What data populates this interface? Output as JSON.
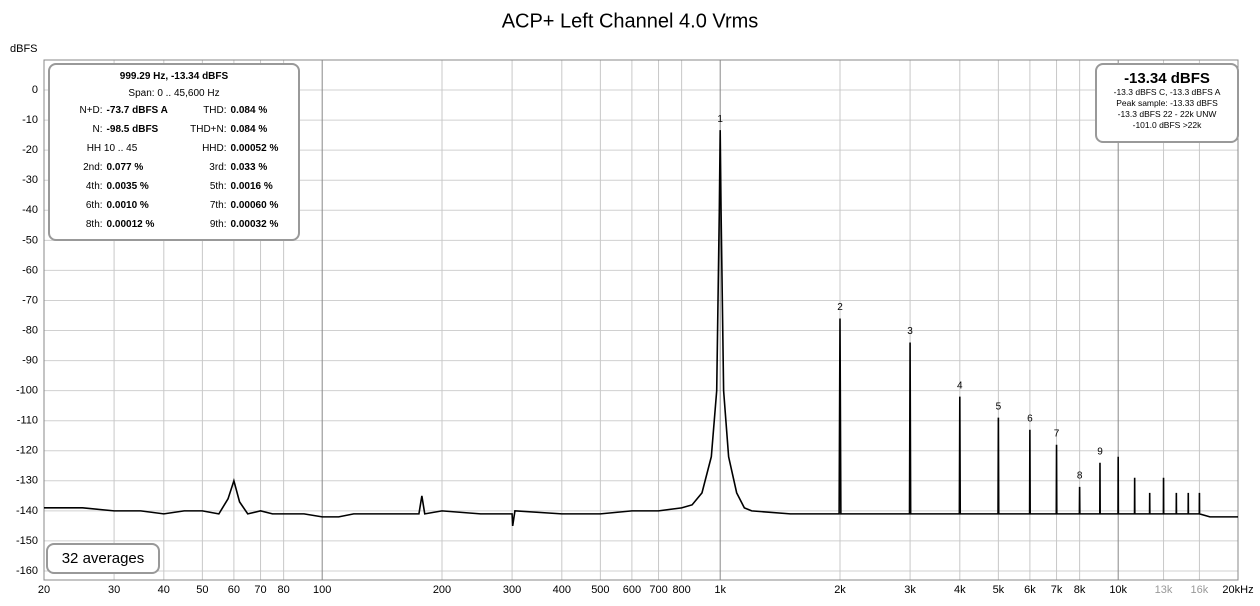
{
  "chart_data": {
    "type": "line",
    "title": "ACP+ Left Channel 4.0 Vrms",
    "y_label": "dBFS",
    "x_scale": "log",
    "grid": true,
    "xlim": [
      20,
      20000
    ],
    "ylim": [
      -163,
      10
    ],
    "yticks": [
      0,
      -10,
      -20,
      -30,
      -40,
      -50,
      -60,
      -70,
      -80,
      -90,
      -100,
      -110,
      -120,
      -130,
      -140,
      -150,
      -160
    ],
    "xticks": [
      20,
      30,
      40,
      50,
      60,
      70,
      80,
      100,
      200,
      300,
      400,
      500,
      600,
      700,
      800,
      {
        "value": 1000,
        "label": "1k"
      },
      {
        "value": 2000,
        "label": "2k"
      },
      {
        "value": 3000,
        "label": "3k"
      },
      {
        "value": 4000,
        "label": "4k"
      },
      {
        "value": 5000,
        "label": "5k"
      },
      {
        "value": 6000,
        "label": "6k"
      },
      {
        "value": 7000,
        "label": "7k"
      },
      {
        "value": 8000,
        "label": "8k"
      },
      {
        "value": 10000,
        "label": "10k"
      },
      {
        "value": 13000,
        "label": "13k",
        "color": "#999999"
      },
      {
        "value": 16000,
        "label": "16k",
        "color": "#999999"
      },
      {
        "value": 20000,
        "label": "20kHz"
      }
    ],
    "x": [
      20,
      25,
      30,
      35,
      40,
      45,
      50,
      55,
      58,
      60,
      62,
      65,
      70,
      75,
      80,
      90,
      100,
      110,
      120,
      140,
      160,
      175,
      178,
      181,
      200,
      250,
      300,
      301,
      305,
      400,
      500,
      600,
      700,
      800,
      850,
      900,
      950,
      980,
      995,
      1000,
      1005,
      1020,
      1050,
      1100,
      1150,
      1200,
      1500,
      1990,
      2000,
      2010,
      2500,
      2990,
      3000,
      3010,
      3500,
      3990,
      4000,
      4010,
      4500,
      4990,
      5000,
      5010,
      5500,
      5990,
      6000,
      6010,
      6500,
      6990,
      7000,
      7010,
      7500,
      7990,
      8000,
      8010,
      8500,
      8990,
      9000,
      9010,
      9500,
      9990,
      10000,
      10010,
      10990,
      11000,
      11010,
      11990,
      12000,
      12010,
      12990,
      13000,
      13010,
      13990,
      14000,
      14010,
      14990,
      15000,
      15010,
      15990,
      16000,
      16010,
      17000,
      20000
    ],
    "series": [
      {
        "name": "Left",
        "color": "#000000",
        "values": [
          -139,
          -139,
          -140,
          -140,
          -141,
          -140,
          -140,
          -141,
          -136,
          -130,
          -137,
          -141,
          -140,
          -141,
          -141,
          -141,
          -142,
          -142,
          -141,
          -141,
          -141,
          -141,
          -135,
          -141,
          -140,
          -141,
          -141,
          -145,
          -140,
          -141,
          -141,
          -140,
          -140,
          -139,
          -138,
          -134,
          -122,
          -100,
          -40,
          -13.34,
          -40,
          -100,
          -122,
          -134,
          -139,
          -140,
          -141,
          -141,
          -76,
          -141,
          -141,
          -141,
          -84,
          -141,
          -141,
          -141,
          -102,
          -141,
          -141,
          -141,
          -109,
          -141,
          -141,
          -141,
          -113,
          -141,
          -141,
          -141,
          -118,
          -141,
          -141,
          -141,
          -132,
          -141,
          -141,
          -141,
          -124,
          -141,
          -141,
          -141,
          -122,
          -141,
          -141,
          -129,
          -141,
          -141,
          -134,
          -141,
          -141,
          -129,
          -141,
          -141,
          -134,
          -141,
          -141,
          -134,
          -141,
          -141,
          -134,
          -141,
          -142,
          -142
        ]
      }
    ],
    "peak_labels": [
      {
        "text": "1",
        "x": 1000,
        "y": -13.34
      },
      {
        "text": "2",
        "x": 2000,
        "y": -76
      },
      {
        "text": "3",
        "x": 3000,
        "y": -84
      },
      {
        "text": "4",
        "x": 4000,
        "y": -102
      },
      {
        "text": "5",
        "x": 5000,
        "y": -109
      },
      {
        "text": "6",
        "x": 6000,
        "y": -113
      },
      {
        "text": "7",
        "x": 7000,
        "y": -118
      },
      {
        "text": "8",
        "x": 8000,
        "y": -132
      },
      {
        "text": "9",
        "x": 9000,
        "y": -124
      }
    ],
    "info_box": {
      "title": "999.29 Hz, -13.34 dBFS",
      "span": "Span: 0 .. 45,600 Hz",
      "rows": [
        [
          "N+D:",
          "-73.7 dBFS A",
          "THD:",
          "0.084 %"
        ],
        [
          "N:",
          "-98.5 dBFS",
          "THD+N:",
          "0.084 %"
        ],
        [
          "HH 10 .. 45",
          "HHD:",
          "0.00052 %"
        ],
        [
          "2nd:",
          "0.077 %",
          "3rd:",
          "0.033 %"
        ],
        [
          "4th:",
          "0.0035 %",
          "5th:",
          "0.0016 %"
        ],
        [
          "6th:",
          "0.0010 %",
          "7th:",
          "0.00060 %"
        ],
        [
          "8th:",
          "0.00012 %",
          "9th:",
          "0.00032 %"
        ]
      ]
    },
    "level_box": {
      "title": "-13.34 dBFS",
      "lines": [
        "-13.3 dBFS C, -13.3 dBFS A",
        "Peak sample: -13.33 dBFS",
        "-13.3 dBFS 22 - 22k UNW",
        "-101.0 dBFS >22k"
      ]
    },
    "averages": "32 averages"
  }
}
